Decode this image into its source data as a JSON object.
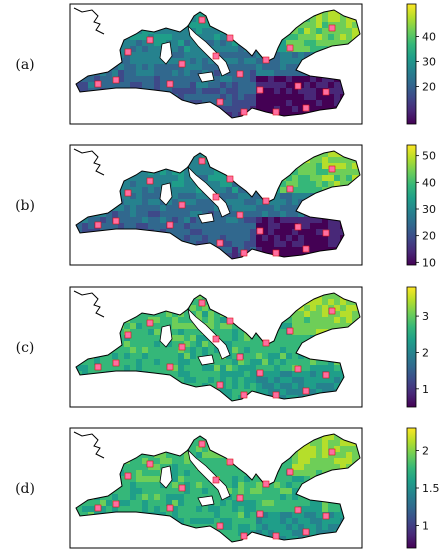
{
  "chart_data": [
    {
      "type": "heatmap",
      "panel_label": "(a)",
      "colormap": "viridis",
      "colorbar": {
        "ticks": [
          20,
          30,
          40
        ],
        "range": [
          5,
          53
        ]
      },
      "region": "Mediterranean Sea",
      "low_value_zones": [
        "southern Levantine basin",
        "Gulf of Sidra coast"
      ],
      "high_value_zones": [
        "eastern Black Sea"
      ]
    },
    {
      "type": "heatmap",
      "panel_label": "(b)",
      "colormap": "viridis",
      "colorbar": {
        "ticks": [
          10,
          20,
          30,
          40,
          50
        ],
        "range": [
          9,
          54
        ]
      },
      "region": "Mediterranean Sea"
    },
    {
      "type": "heatmap",
      "panel_label": "(c)",
      "colormap": "viridis",
      "colorbar": {
        "ticks": [
          1,
          2,
          3
        ],
        "range": [
          0.5,
          3.8
        ]
      },
      "region": "Mediterranean Sea"
    },
    {
      "type": "heatmap",
      "panel_label": "(d)",
      "colormap": "viridis",
      "colorbar": {
        "ticks": [
          1.0,
          1.5,
          2.0
        ],
        "range": [
          0.7,
          2.3
        ]
      },
      "region": "Mediterranean Sea"
    }
  ]
}
